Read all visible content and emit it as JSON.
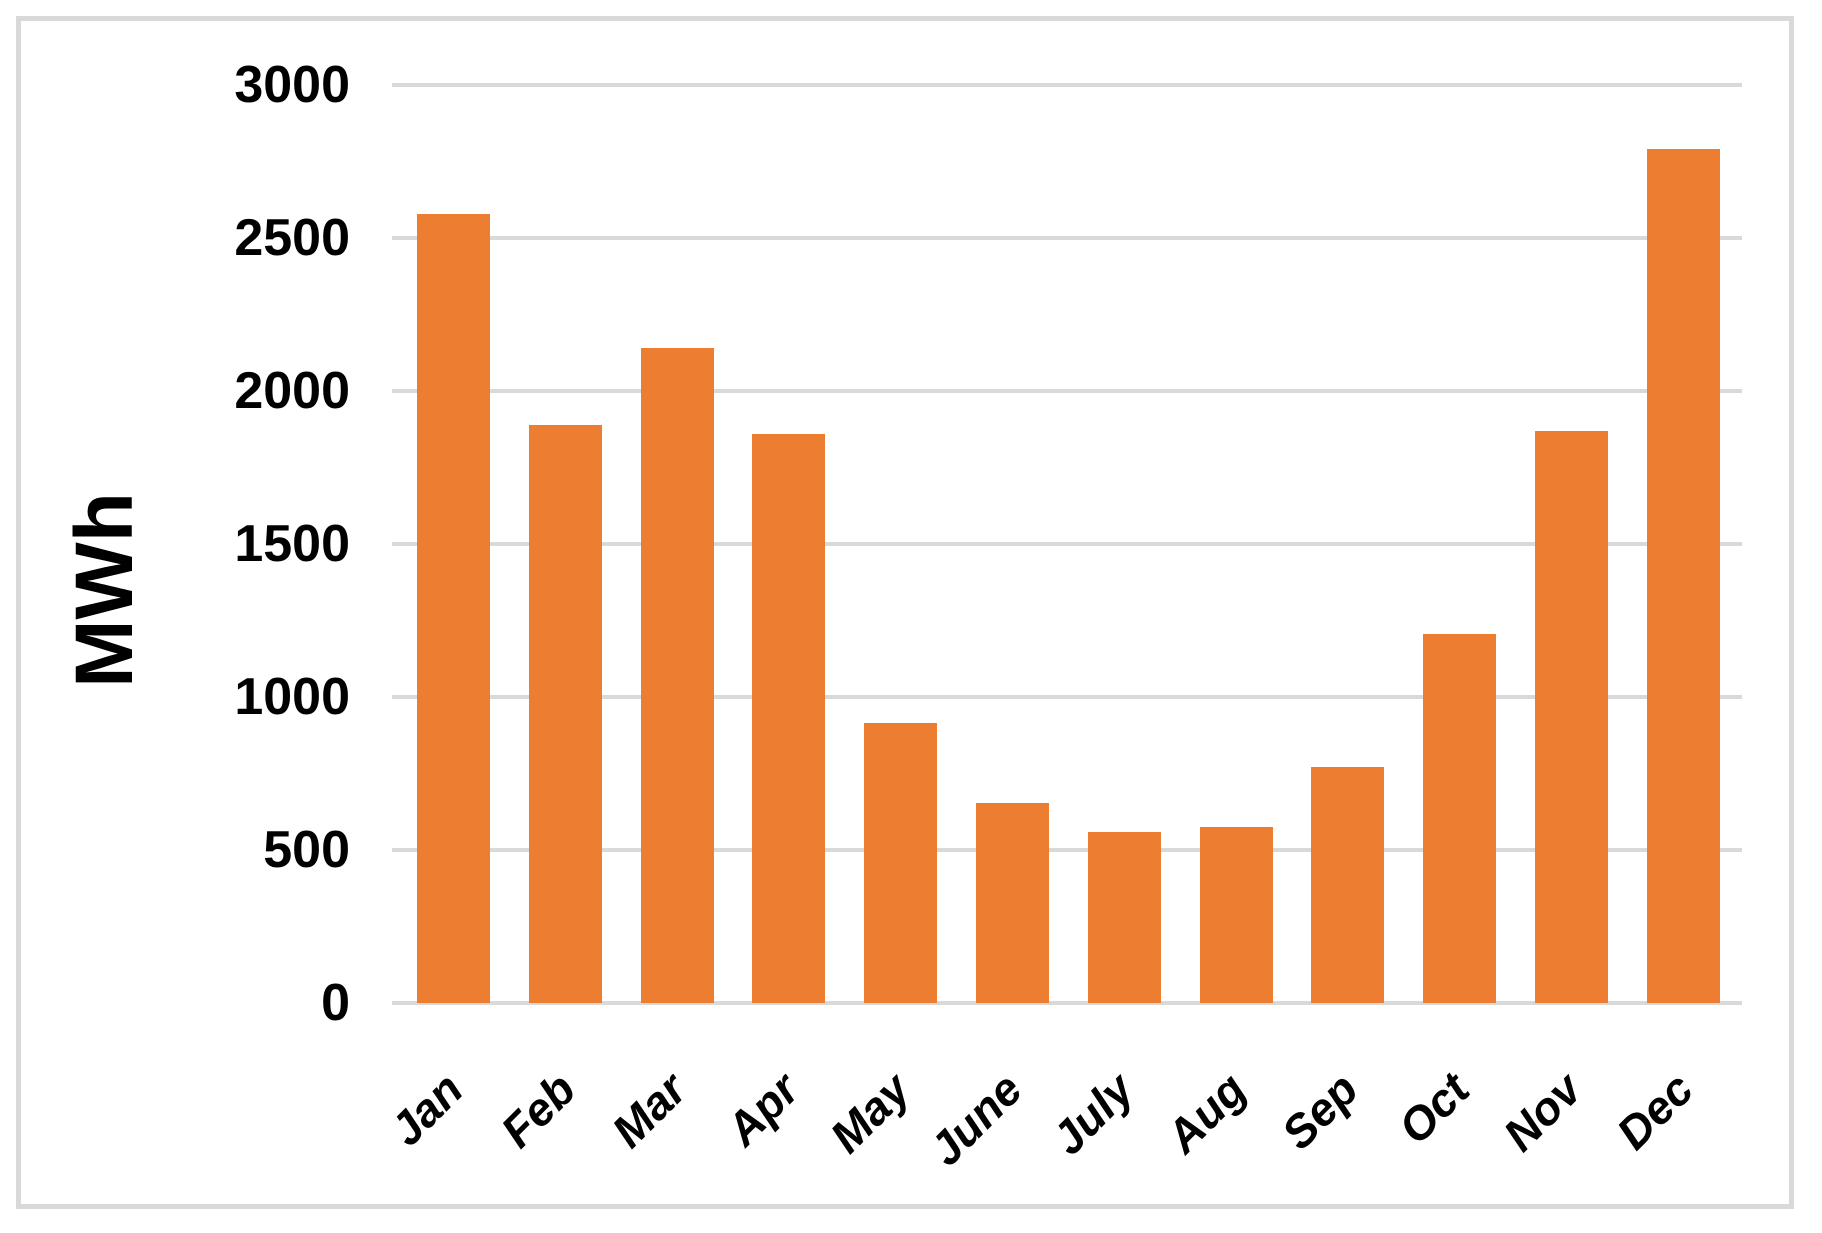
{
  "chart_data": {
    "type": "bar",
    "title": "",
    "ylabel": "MWh",
    "xlabel": "",
    "categories": [
      "Jan",
      "Feb",
      "Mar",
      "Apr",
      "May",
      "June",
      "July",
      "Aug",
      "Sep",
      "Oct",
      "Nov",
      "Dec"
    ],
    "values": [
      2580,
      1890,
      2140,
      1860,
      915,
      655,
      560,
      575,
      770,
      1205,
      1870,
      2790
    ],
    "ylim": [
      0,
      3000
    ],
    "ytick_step": 500,
    "ytick_labels_top_to_bottom": [
      "3000",
      "2500",
      "2000",
      "1500",
      "1000",
      "500",
      "0"
    ],
    "grid": true,
    "legend": false,
    "colors": {
      "bar": "#ED7D31",
      "gridline": "#D9D9D9",
      "frame_border": "#D9D9D9",
      "text": "#000000",
      "background": "#FFFFFF"
    }
  }
}
